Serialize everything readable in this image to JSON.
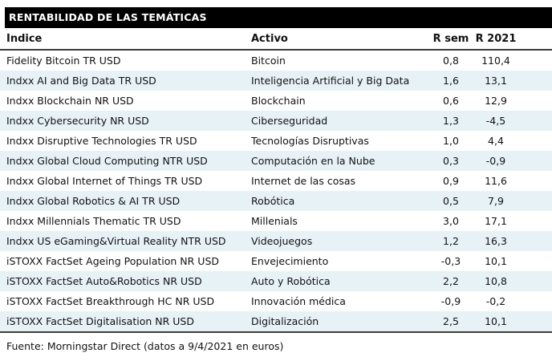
{
  "title": "RENTABILIDAD DE LAS TEMÁTICAS",
  "footer": "Fuente: Morningstar Direct (datos a 9/4/2021 en euros)",
  "colors": {
    "title_bg": "#000000",
    "title_fg": "#ffffff",
    "stripe": "#e7f2f7",
    "rule": "#3c3c3c",
    "text": "#111111"
  },
  "chart_data": {
    "type": "table",
    "title": "RENTABILIDAD DE LAS TEMÁTICAS",
    "columns": [
      "Índice",
      "Activo",
      "R sem",
      "R 2021"
    ],
    "rows": [
      [
        "Fidelity Bitcoin TR USD",
        "Bitcoin",
        "0,8",
        "110,4"
      ],
      [
        "Indxx AI and Big Data TR USD",
        "Inteligencia Artificial y Big Data",
        "1,6",
        "13,1"
      ],
      [
        "Indxx Blockchain NR USD",
        "Blockchain",
        "0,6",
        "12,9"
      ],
      [
        "Indxx Cybersecurity NR USD",
        "Ciberseguridad",
        "1,3",
        "-4,5"
      ],
      [
        "Indxx Disruptive Technologies TR USD",
        "Tecnologías Disruptivas",
        "1,0",
        "4,4"
      ],
      [
        "Indxx Global Cloud Computing NTR USD",
        "Computación en la Nube",
        "0,3",
        "-0,9"
      ],
      [
        "Indxx Global Internet of Things TR USD",
        "Internet de las cosas",
        "0,9",
        "11,6"
      ],
      [
        "Indxx Global Robotics & AI TR USD",
        "Robótica",
        "0,5",
        "7,9"
      ],
      [
        "Indxx Millennials Thematic TR USD",
        "Millenials",
        "3,0",
        "17,1"
      ],
      [
        "Indxx US eGaming&Virtual Reality NTR USD",
        "Videojuegos",
        "1,2",
        "16,3"
      ],
      [
        "iSTOXX FactSet Ageing Population NR USD",
        "Envejecimiento",
        "-0,3",
        "10,1"
      ],
      [
        "iSTOXX FactSet Auto&Robotics NR USD",
        "Auto y Robótica",
        "2,2",
        "10,8"
      ],
      [
        "iSTOXX FactSet Breakthrough HC NR USD",
        "Innovación médica",
        "-0,9",
        "-0,2"
      ],
      [
        "iSTOXX FactSet Digitalisation NR USD",
        "Digitalización",
        "2,5",
        "10,1"
      ]
    ],
    "source_note": "Fuente: Morningstar Direct (datos a 9/4/2021 en euros)",
    "layout": {
      "striped": true,
      "stripe_rows": "even",
      "numeric_alignment": "center",
      "grid": "horizontal rules above and below body only"
    }
  }
}
